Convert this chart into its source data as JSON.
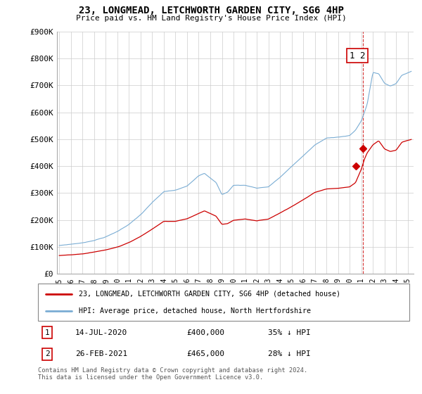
{
  "title": "23, LONGMEAD, LETCHWORTH GARDEN CITY, SG6 4HP",
  "subtitle": "Price paid vs. HM Land Registry's House Price Index (HPI)",
  "legend_line1": "23, LONGMEAD, LETCHWORTH GARDEN CITY, SG6 4HP (detached house)",
  "legend_line2": "HPI: Average price, detached house, North Hertfordshire",
  "footer": "Contains HM Land Registry data © Crown copyright and database right 2024.\nThis data is licensed under the Open Government Licence v3.0.",
  "annotation1_date": "14-JUL-2020",
  "annotation1_price": "£400,000",
  "annotation1_hpi": "35% ↓ HPI",
  "annotation2_date": "26-FEB-2021",
  "annotation2_price": "£465,000",
  "annotation2_hpi": "28% ↓ HPI",
  "point1_x": 2020.54,
  "point1_y": 400000,
  "point2_x": 2021.15,
  "point2_y": 465000,
  "vline_x": 2021.15,
  "red_color": "#cc0000",
  "blue_color": "#7aadd4",
  "ylim": [
    0,
    900000
  ],
  "xlim_start": 1994.8,
  "xlim_end": 2025.5,
  "ytick_values": [
    0,
    100000,
    200000,
    300000,
    400000,
    500000,
    600000,
    700000,
    800000,
    900000
  ],
  "ytick_labels": [
    "£0",
    "£100K",
    "£200K",
    "£300K",
    "£400K",
    "£500K",
    "£600K",
    "£700K",
    "£800K",
    "£900K"
  ],
  "xtick_years": [
    1995,
    1996,
    1997,
    1998,
    1999,
    2000,
    2001,
    2002,
    2003,
    2004,
    2005,
    2006,
    2007,
    2008,
    2009,
    2010,
    2011,
    2012,
    2013,
    2014,
    2015,
    2016,
    2017,
    2018,
    2019,
    2020,
    2021,
    2022,
    2023,
    2024,
    2025
  ]
}
